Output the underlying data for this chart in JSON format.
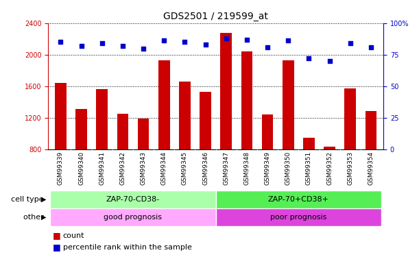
{
  "title": "GDS2501 / 219599_at",
  "samples": [
    "GSM99339",
    "GSM99340",
    "GSM99341",
    "GSM99342",
    "GSM99343",
    "GSM99344",
    "GSM99345",
    "GSM99346",
    "GSM99347",
    "GSM99348",
    "GSM99349",
    "GSM99350",
    "GSM99351",
    "GSM99352",
    "GSM99353",
    "GSM99354"
  ],
  "counts": [
    1640,
    1310,
    1560,
    1250,
    1185,
    1930,
    1660,
    1530,
    2280,
    2040,
    1240,
    1930,
    940,
    830,
    1570,
    1280
  ],
  "percentile": [
    85,
    82,
    84,
    82,
    80,
    86,
    85,
    83,
    88,
    87,
    81,
    86,
    72,
    70,
    84,
    81
  ],
  "ylim_left": [
    800,
    2400
  ],
  "ylim_right": [
    0,
    100
  ],
  "yticks_left": [
    800,
    1200,
    1600,
    2000,
    2400
  ],
  "yticks_right": [
    0,
    25,
    50,
    75,
    100
  ],
  "bar_color": "#cc0000",
  "dot_color": "#0000cc",
  "cell_type_group1_label": "ZAP-70-CD38-",
  "cell_type_group2_label": "ZAP-70+CD38+",
  "other_group1_label": "good prognosis",
  "other_group2_label": "poor prognosis",
  "group1_count": 8,
  "group2_count": 8,
  "cell_type_color1": "#aaffaa",
  "cell_type_color2": "#55ee55",
  "other_color1": "#ffaaff",
  "other_color2": "#dd44dd",
  "tick_bg_color": "#cccccc",
  "legend_count_label": "count",
  "legend_pct_label": "percentile rank within the sample",
  "cell_type_label": "cell type",
  "other_label": "other",
  "title_fontsize": 10,
  "tick_fontsize": 7,
  "bar_width": 0.55
}
